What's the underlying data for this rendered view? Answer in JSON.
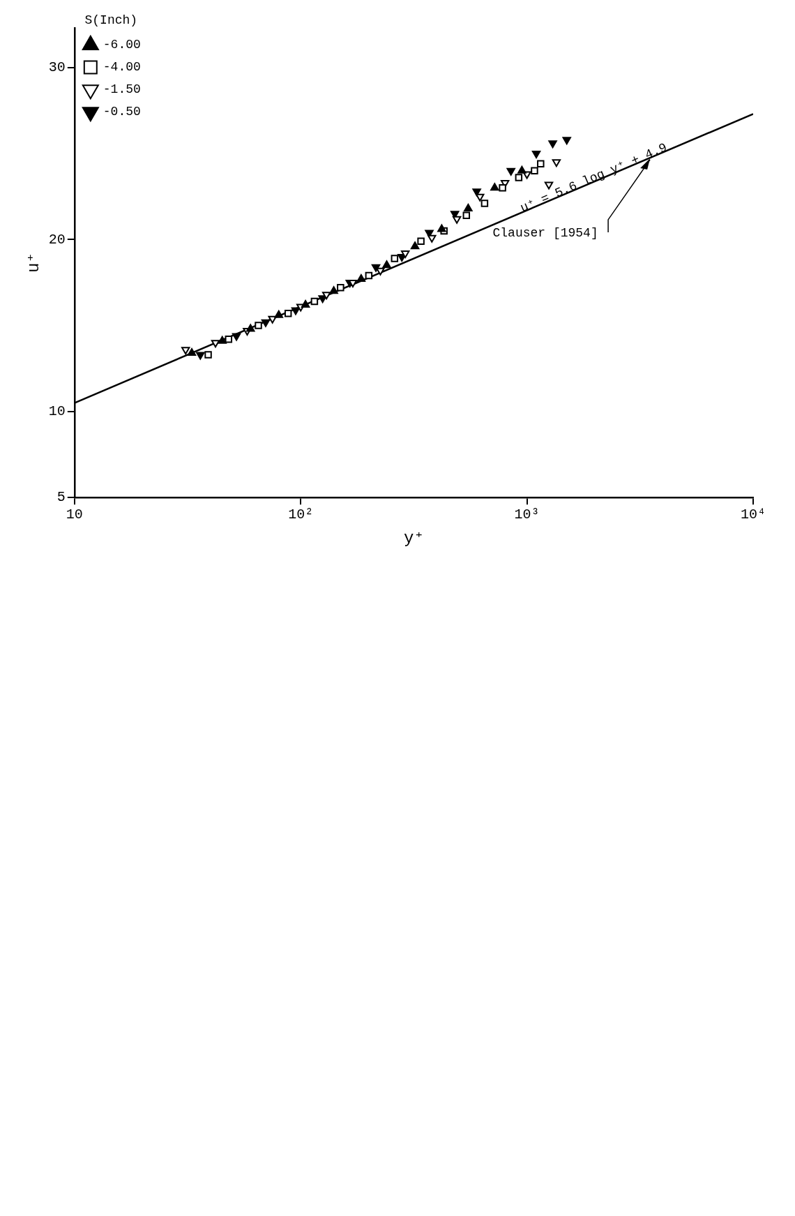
{
  "chart_data": {
    "type": "scatter",
    "xlabel": "y⁺",
    "ylabel": "u⁺",
    "legend_title": "S(Inch)",
    "legend": "top left",
    "log": "x",
    "xlim": [
      10,
      10000
    ],
    "xticks": [
      {
        "value": 10,
        "label": "10"
      },
      {
        "value": 100,
        "label": "10²"
      },
      {
        "value": 1000,
        "label": "10³"
      },
      {
        "value": 10000,
        "label": "10⁴"
      }
    ],
    "ylim": [
      5,
      32.3
    ],
    "yticks": [
      5,
      10,
      20,
      30
    ],
    "grid": false,
    "series": [
      {
        "name": "-6.00",
        "color": "#000000",
        "marker": "triangle",
        "x": [
          33,
          45,
          60,
          80,
          105,
          140,
          185,
          240,
          320,
          420,
          550,
          720,
          950
        ],
        "values": [
          13.4,
          14.1,
          14.8,
          15.6,
          16.2,
          17.0,
          17.7,
          18.5,
          19.6,
          20.6,
          21.8,
          23.0,
          24.0
        ]
      },
      {
        "name": "-4.00",
        "color": "#000000",
        "marker": "square",
        "x": [
          39,
          48,
          65,
          88,
          115,
          150,
          200,
          260,
          340,
          430,
          540,
          650,
          780,
          920,
          1080,
          1150
        ],
        "values": [
          13.3,
          14.2,
          15.0,
          15.7,
          16.4,
          17.2,
          17.9,
          18.9,
          19.9,
          20.5,
          21.4,
          22.1,
          23.0,
          23.6,
          24.0,
          24.4
        ]
      },
      {
        "name": "-1.50",
        "color": "#000000",
        "marker": "triangle",
        "x": [
          31,
          42,
          58,
          75,
          100,
          130,
          170,
          225,
          290,
          380,
          490,
          620,
          800,
          1000,
          1250,
          1350
        ],
        "values": [
          13.6,
          14.0,
          14.7,
          15.4,
          16.1,
          16.8,
          17.5,
          18.2,
          19.2,
          20.1,
          21.2,
          22.5,
          23.3,
          23.8,
          23.2,
          24.5
        ]
      },
      {
        "name": "-0.50",
        "color": "#000000",
        "marker": "triangle",
        "x": [
          36,
          52,
          70,
          95,
          125,
          165,
          215,
          280,
          370,
          480,
          600,
          850,
          1100,
          1300,
          1500
        ],
        "values": [
          13.3,
          14.4,
          15.2,
          15.9,
          16.6,
          17.5,
          18.4,
          19.0,
          20.4,
          21.5,
          22.8,
          24.0,
          25.0,
          25.6,
          25.8
        ]
      },
      {
        "type": "line",
        "color": "#000000",
        "marker": "none",
        "line_style": "solid",
        "x": [
          10,
          10000
        ],
        "values": [
          10.5,
          27.3
        ]
      }
    ],
    "annotations": [
      {
        "text": "u⁺ = 5.6 log y⁺ + 4.9",
        "x": 2000,
        "y": 23.4
      },
      {
        "text": "Clauser [1954]",
        "x": 3500,
        "y": 24.8
      }
    ]
  }
}
